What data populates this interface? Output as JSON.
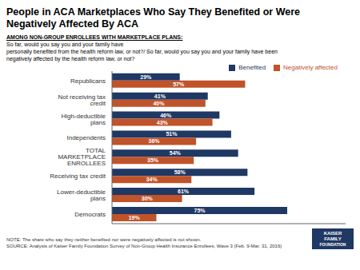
{
  "chart_data": {
    "type": "bar",
    "orientation": "horizontal",
    "title": "People in ACA Marketplaces Who Say They Benefited or Were\nNegatively Affected By ACA",
    "subtitle": "AMONG NON-GROUP ENROLLEES WITH MARKETPLACE PLANS:",
    "annotations": [
      " So far, would you say you and your family have\npersonally benefited from the health reform law, or not?/ So far, would you say you and your family have been\nnegatively affected by the health reform law, or not?",
      "NOTE: The share who say they neither benefited nor were negatively affected is not shown.",
      "SOURCE: Analysis of Kaiser Family Foundation Survey of Non-Group Health Insurance Enrollees, Wave 3 (Feb. 9-Mar. 31, 2016)",
      "KAISER",
      "FAMILY",
      "FOUNDATION"
    ],
    "categories": [
      "Republicans",
      "Not receiving tax credit",
      "High-deductible plans",
      "Independents",
      "TOTAL MARKETPLACE ENROLLEES",
      "Receiving tax credit",
      "Lower-deductible plans",
      "Democrats"
    ],
    "series": [
      {
        "name": "Benefited",
        "color": "#1f3864",
        "values": [
          29,
          41,
          46,
          51,
          54,
          58,
          61,
          75
        ],
        "value_labels": [
          "29%",
          "41%",
          "46%",
          "51%",
          "54%",
          "58%",
          "61%",
          "75%"
        ]
      },
      {
        "name": "Negatively affected",
        "color": "#c0532a",
        "values": [
          57,
          40,
          43,
          36,
          35,
          34,
          30,
          19
        ],
        "value_labels": [
          "57%",
          "40%",
          "43%",
          "36%",
          "35%",
          "34%",
          "30%",
          "19%"
        ]
      }
    ],
    "xlim": [
      0,
      100
    ],
    "data_labels": true,
    "tick_labels": "y",
    "legend": "upper right",
    "grid": false
  }
}
